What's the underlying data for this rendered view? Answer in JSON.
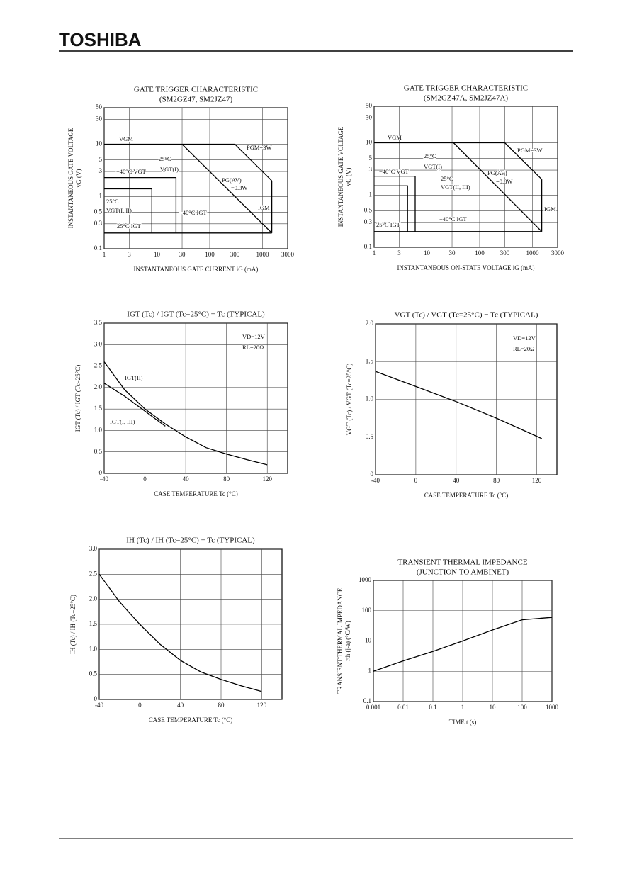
{
  "header": {
    "brand": "TOSHIBA"
  },
  "chart_data": [
    {
      "type": "line",
      "title": "GATE TRIGGER CHARACTERISTIC",
      "subtitle": "(SM2GZ47, SM2JZ47)",
      "xlabel": "INSTANTANEOUS GATE CURRENT  iG  (mA)",
      "ylabel": [
        "INSTANTANEOUS GATE VOLTAGE",
        "vG  (V)"
      ],
      "logx": true,
      "logy": true,
      "grid": true,
      "xlim": [
        1,
        3000
      ],
      "xticks": [
        1,
        3,
        10,
        30,
        100,
        300,
        1000,
        3000
      ],
      "ylim": [
        0.1,
        50
      ],
      "yticks": [
        0.1,
        0.3,
        0.5,
        1,
        3,
        5,
        10,
        30,
        50
      ],
      "series": [
        {
          "color": "#000",
          "x": [
            1,
            300
          ],
          "values": [
            10,
            10
          ]
        },
        {
          "color": "#000",
          "x": [
            300,
            1500
          ],
          "values": [
            10,
            2
          ]
        },
        {
          "color": "#000",
          "x": [
            1500,
            1500
          ],
          "values": [
            2,
            0.2
          ]
        },
        {
          "color": "#000",
          "x": [
            30,
            1500
          ],
          "values": [
            10,
            0.2
          ]
        },
        {
          "color": "#000",
          "x": [
            1,
            8,
            8
          ],
          "values": [
            1.4,
            1.4,
            0.2
          ]
        },
        {
          "color": "#000",
          "x": [
            1,
            23,
            23
          ],
          "values": [
            2.3,
            2.3,
            0.2
          ]
        },
        {
          "color": "#000",
          "x": [
            1,
            1500
          ],
          "values": [
            0.2,
            0.2
          ]
        }
      ],
      "annotations": [
        "VGM",
        "PGM=3W",
        "25°C",
        "VGT(I)",
        "−40°C VGT",
        "PG(AV)",
        "=0.3W",
        "25°C",
        "VGT(I, II)",
        "IGM",
        "−40°C IGT",
        "25°C IGT"
      ]
    },
    {
      "type": "line",
      "title": "GATE TRIGGER CHARACTERISTIC",
      "subtitle": "(SM2GZ47A, SM2JZ47A)",
      "xlabel": "INSTANTANEOUS ON-STATE VOLTAGE  iG  (mA)",
      "ylabel": [
        "INSTANTANEOUS GATE VOLTAGE",
        "vG  (V)"
      ],
      "logx": true,
      "logy": true,
      "grid": true,
      "xlim": [
        1,
        3000
      ],
      "xticks": [
        1,
        3,
        10,
        30,
        100,
        300,
        1000,
        3000
      ],
      "ylim": [
        0.1,
        50
      ],
      "yticks": [
        0.1,
        0.3,
        0.5,
        1,
        3,
        5,
        10,
        30,
        50
      ],
      "series": [
        {
          "color": "#000",
          "x": [
            1,
            300
          ],
          "values": [
            10,
            10
          ]
        },
        {
          "color": "#000",
          "x": [
            300,
            1500
          ],
          "values": [
            10,
            2
          ]
        },
        {
          "color": "#000",
          "x": [
            1500,
            1500
          ],
          "values": [
            2,
            0.2
          ]
        },
        {
          "color": "#000",
          "x": [
            32,
            1500
          ],
          "values": [
            10,
            0.2
          ]
        },
        {
          "color": "#000",
          "x": [
            1,
            4.3,
            4.3
          ],
          "values": [
            1.5,
            1.5,
            0.2
          ]
        },
        {
          "color": "#000",
          "x": [
            1,
            6,
            6
          ],
          "values": [
            2.3,
            2.3,
            0.2
          ]
        },
        {
          "color": "#000",
          "x": [
            1,
            1500
          ],
          "values": [
            0.2,
            0.2
          ]
        }
      ],
      "annotations": [
        "VGM",
        "PGM=3W",
        "25°C",
        "−40°C VGT",
        "VGT(I)",
        "25°C",
        "VGT(II, III)",
        "PG(AV)",
        "=0.8W",
        "IGM",
        "−40°C IGT",
        "25°C IGT"
      ]
    },
    {
      "type": "line",
      "title": "IGT (Tc) / IGT (Tc=25°C)  −  Tc   (TYPICAL)",
      "xlabel": "CASE TEMPERATURE   Tc   (°C)",
      "ylabel": "IGT (Tc) / IGT (Tc=25°C)",
      "grid": true,
      "xlim": [
        -40,
        140
      ],
      "xticks": [
        -40,
        0,
        40,
        80,
        120
      ],
      "ylim": [
        0,
        3.5
      ],
      "yticks": [
        0,
        0.5,
        {
          "value": 1,
          "label": "1.0"
        },
        1.5,
        {
          "value": 2,
          "label": "2.0"
        },
        2.5,
        {
          "value": 3,
          "label": "3.0"
        },
        3.5
      ],
      "series": [
        {
          "color": "#000",
          "x": [
            -40,
            -20,
            0,
            20,
            40,
            60,
            80,
            100,
            120
          ],
          "values": [
            2.6,
            1.95,
            1.5,
            1.15,
            0.85,
            0.6,
            0.45,
            0.32,
            0.2
          ]
        },
        {
          "color": "#000",
          "x": [
            -40,
            -20,
            0,
            20
          ],
          "values": [
            2.1,
            1.8,
            1.45,
            1.1
          ]
        }
      ],
      "annotations": [
        "VD=12V",
        "RL=20Ω",
        "IGT(II)",
        "IGT(I, III)"
      ]
    },
    {
      "type": "line",
      "title": "VGT (Tc) / VGT (Tc=25°C)  −  Tc   (TYPICAL)",
      "xlabel": "CASE TEMPERATURE   Tc   (°C)",
      "ylabel": "VGT (Tc) / VGT (Tc=25°C)",
      "grid": true,
      "xlim": [
        -40,
        140
      ],
      "xticks": [
        -40,
        0,
        40,
        80,
        120
      ],
      "ylim": [
        0,
        2
      ],
      "yticks": [
        0,
        0.5,
        {
          "value": 1,
          "label": "1.0"
        },
        1.5,
        {
          "value": 2,
          "label": "2.0"
        }
      ],
      "series": [
        {
          "color": "#000",
          "x": [
            -40,
            0,
            40,
            80,
            125
          ],
          "values": [
            1.37,
            1.17,
            0.97,
            0.75,
            0.48
          ]
        }
      ],
      "annotations": [
        "VD=12V",
        "RL=20Ω"
      ]
    },
    {
      "type": "line",
      "title": "IH (Tc) / IH (Tc=25°C)  −  Tc   (TYPICAL)",
      "xlabel": "CASE TEMPERATURE   Tc   (°C)",
      "ylabel": "IH (Tc) / IH (Tc=25°C)",
      "grid": true,
      "xlim": [
        -40,
        140
      ],
      "xticks": [
        -40,
        0,
        40,
        80,
        120
      ],
      "ylim": [
        0,
        3
      ],
      "yticks": [
        0,
        0.5,
        {
          "value": 1,
          "label": "1.0"
        },
        1.5,
        {
          "value": 2,
          "label": "2.0"
        },
        2.5,
        {
          "value": 3,
          "label": "3.0"
        }
      ],
      "series": [
        {
          "color": "#000",
          "x": [
            -40,
            -20,
            0,
            20,
            40,
            60,
            80,
            100,
            120
          ],
          "values": [
            2.5,
            1.95,
            1.5,
            1.1,
            0.78,
            0.55,
            0.4,
            0.27,
            0.16
          ]
        }
      ],
      "annotations": []
    },
    {
      "type": "line",
      "title": "TRANSIENT THERMAL IMPEDANCE",
      "subtitle": "(JUNCTION TO AMBINET)",
      "xlabel": "TIME   t   (s)",
      "ylabel": [
        "TRANSIENT THERMAL IMPEDANCE",
        "rth (j-a)  (°C/W)"
      ],
      "logx": true,
      "logy": true,
      "grid": true,
      "xlim": [
        0.001,
        1000
      ],
      "xticks": [
        0.001,
        0.01,
        0.1,
        1,
        10,
        100,
        1000
      ],
      "ylim": [
        0.1,
        1000
      ],
      "yticks": [
        0.1,
        1,
        10,
        100,
        1000
      ],
      "series": [
        {
          "color": "#000",
          "x": [
            0.001,
            0.01,
            0.1,
            1,
            10,
            100,
            1000
          ],
          "values": [
            1,
            2.2,
            4.5,
            10,
            23,
            50,
            60
          ]
        }
      ],
      "annotations": []
    }
  ]
}
